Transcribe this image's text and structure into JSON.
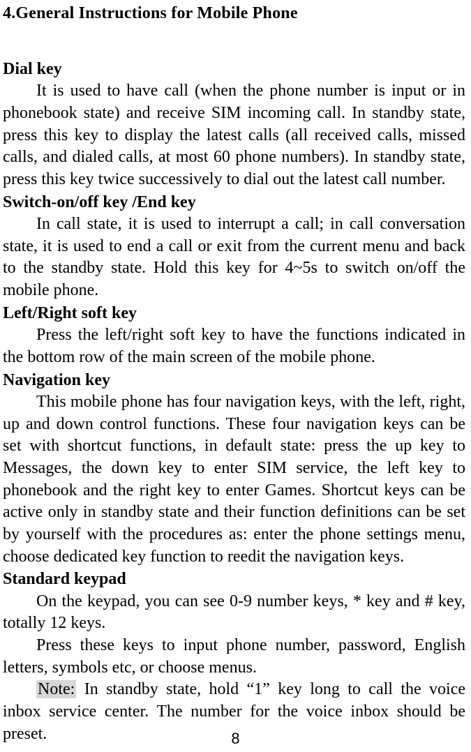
{
  "page_title": "4.General Instructions for Mobile Phone",
  "sections": [
    {
      "heading": "Dial key",
      "paras": [
        "It is used to have call (when the phone number is input or in phonebook state) and receive SIM incoming call. In standby state, press this key to display the latest calls (all received calls, missed calls, and dialed calls, at most 60 phone numbers). In standby state, press this key twice successively to dial out the latest call number."
      ]
    },
    {
      "heading": "Switch-on/off key /End key",
      "paras": [
        "In call state, it is used to interrupt a call; in call conversation state, it is used to end a call or exit from the current menu and back to the standby state. Hold this key for 4~5s to switch on/off the mobile phone."
      ]
    },
    {
      "heading": "Left/Right soft key",
      "paras": [
        "Press the left/right soft key to have the functions indicated in the bottom row of the main screen of the mobile phone."
      ]
    },
    {
      "heading": "Navigation key",
      "paras": [
        "This mobile phone has four navigation keys, with the left, right, up and down control functions. These four navigation keys can be set with shortcut functions, in default state: press the up key to Messages, the down key to enter SIM service, the left key to phonebook and the right key to enter Games. Shortcut keys can be active only in standby state and their function definitions can be set by yourself with the procedures as: enter the phone settings menu, choose dedicated key function to reedit the navigation keys."
      ]
    },
    {
      "heading": "Standard keypad",
      "paras": [
        "On the keypad, you can see 0-9 number keys, * key and # key, totally 12 keys.",
        "Press these keys to input phone number, password, English letters, symbols etc, or choose menus."
      ],
      "note_label": "Note:",
      "note_text": " In standby state, hold “1” key long to call the voice inbox service center. The number for the voice inbox should be preset."
    }
  ],
  "page_number": "8",
  "colors": {
    "background": "#ffffff",
    "text": "#000000",
    "highlight_bg": "#d7d7d7"
  },
  "typography": {
    "body_font": "Times New Roman",
    "body_size_pt": 18,
    "pagenum_font": "Arial",
    "pagenum_size_pt": 16
  }
}
